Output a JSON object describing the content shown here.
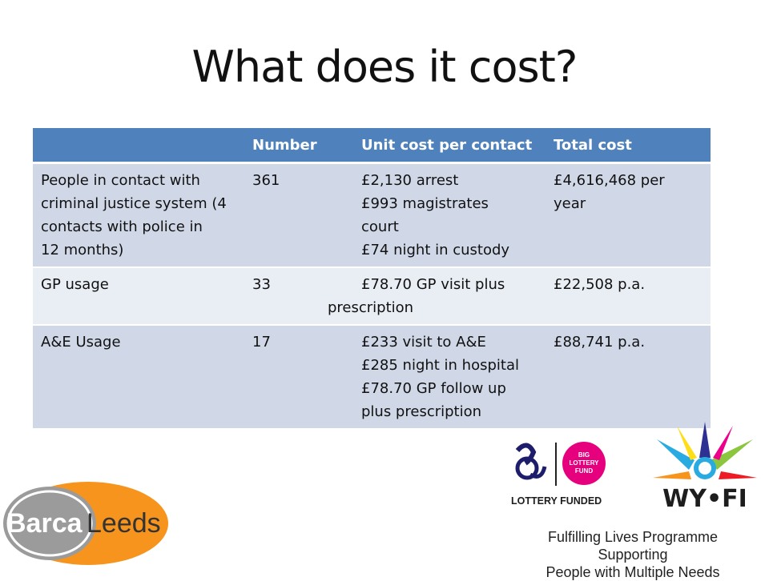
{
  "title": "What does it cost?",
  "table": {
    "headers": [
      "",
      "Number",
      "Unit cost per contact",
      "Total cost"
    ],
    "rows": [
      {
        "label_lines": [
          "People in contact with",
          "criminal justice system (4",
          "contacts with police in",
          "12 months)"
        ],
        "number": "361",
        "unit_lines": [
          "£2,130 arrest",
          "£993 magistrates",
          "court",
          "£74 night in custody"
        ],
        "total_lines": [
          "£4,616,468 per",
          "year"
        ]
      },
      {
        "label_lines": [
          "GP usage"
        ],
        "number": "33",
        "unit_lines": [
          "£78.70 GP visit plus",
          "prescription"
        ],
        "total_lines": [
          "£22,508 p.a."
        ]
      },
      {
        "label_lines": [
          "A&E Usage"
        ],
        "number": "17",
        "unit_lines": [
          "£233 visit to A&E",
          "£285 night in hospital",
          "£78.70 GP follow up",
          "plus prescription"
        ],
        "total_lines": [
          "£88,741 p.a."
        ]
      }
    ]
  },
  "logos": {
    "lottery_text": "LOTTERY FUNDED",
    "big_lottery_text": [
      "BIG",
      "LOTTERY",
      "FUND"
    ],
    "wyfi_text": "WY•FI",
    "barca_text_1": "Barca",
    "barca_text_2": "Leeds"
  },
  "footer": {
    "line1": "Fulfilling Lives Programme Supporting",
    "line2": "People with Multiple Needs"
  },
  "colors": {
    "header_blue": "#4f81bd",
    "row_dark": "#d0d8e8",
    "row_light": "#e9edf4",
    "pink": "#e6007e",
    "orange": "#f7941d"
  }
}
